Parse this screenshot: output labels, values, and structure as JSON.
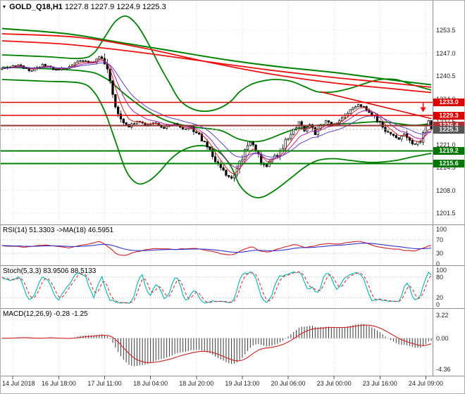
{
  "header": {
    "symbol": "GOLD_Q18,H1",
    "ohlc": "1227.8 1227.9 1224.9 1225.3",
    "dropdown_icon": "▾"
  },
  "panels": {
    "rsi": {
      "label": "RSI(14) 51.3303 ->MA(18) 46.5951"
    },
    "stoch": {
      "label": "Stoch(5,3,3) 83.9506 88.5133"
    },
    "macd": {
      "label": "MACD(12,26,9) -0.28 -1.25"
    }
  },
  "colors": {
    "grid": "#d9d9d9",
    "bull": "#ffffff",
    "bear": "#000000",
    "candle_outline": "#000000",
    "ma_red": "#ee1111",
    "band_green": "#008000",
    "level_red": "#dd0000",
    "level_maroon": "#993333",
    "level_green": "#008000",
    "bid_line": "#aaaaaa",
    "rsi_main": "#cc2222",
    "rsi_ma": "#3333cc",
    "stoch_main": "#00b3b3",
    "stoch_signal": "#cc2222",
    "macd_hist": "#3a3a3a",
    "macd_signal": "#cc2222",
    "separator": "#8f8f8f",
    "axis_text": "#222222"
  },
  "chart_data": {
    "type": "candlestick",
    "title": "GOLD_Q18,H1",
    "symbol": "GOLD_Q18",
    "timeframe": "H1",
    "ohlc_current": {
      "open": 1227.8,
      "high": 1227.9,
      "low": 1224.9,
      "close": 1225.3
    },
    "time_axis": {
      "labels": [
        {
          "label": "14 Jul 2018",
          "bar": 4
        },
        {
          "label": "16 Jul 18:00",
          "bar": 21
        },
        {
          "label": "17 Jul 11:00",
          "bar": 38
        },
        {
          "label": "18 Jul 04:00",
          "bar": 55
        },
        {
          "label": "18 Jul 20:00",
          "bar": 72
        },
        {
          "label": "19 Jul 13:00",
          "bar": 89
        },
        {
          "label": "20 Jul 06:00",
          "bar": 106
        },
        {
          "label": "23 Jul 00:00",
          "bar": 123
        },
        {
          "label": "23 Jul 16:00",
          "bar": 140
        },
        {
          "label": "24 Jul 09:00",
          "bar": 157
        }
      ]
    },
    "main": {
      "bars": 160,
      "y_range": [
        1198.3,
        1261.9
      ],
      "y_ticks": [
        {
          "label": "1253.5",
          "value": 1253.5
        },
        {
          "label": "1247.0",
          "value": 1247.0
        },
        {
          "label": "1240.5",
          "value": 1240.5
        },
        {
          "label": "1234.0",
          "value": 1234.0
        },
        {
          "label": "1227.5",
          "value": 1227.5
        },
        {
          "label": "1221.0",
          "value": 1221.0
        },
        {
          "label": "1214.5",
          "value": 1214.5
        },
        {
          "label": "1208.0",
          "value": 1208.0
        },
        {
          "label": "1201.5",
          "value": 1201.5
        }
      ],
      "price_anchors": [
        [
          0,
          1242.5
        ],
        [
          6,
          1243.5
        ],
        [
          11,
          1242.0
        ],
        [
          15,
          1243.8
        ],
        [
          20,
          1242.2
        ],
        [
          25,
          1243.0
        ],
        [
          29,
          1244.8
        ],
        [
          33,
          1244.2
        ],
        [
          36,
          1246.0
        ],
        [
          38,
          1244.8
        ],
        [
          40,
          1239.5
        ],
        [
          42,
          1231.5
        ],
        [
          44,
          1227.5
        ],
        [
          47,
          1225.8
        ],
        [
          50,
          1227.8
        ],
        [
          53,
          1226.2
        ],
        [
          56,
          1227.3
        ],
        [
          60,
          1225.8
        ],
        [
          64,
          1226.8
        ],
        [
          67,
          1225.3
        ],
        [
          70,
          1226.2
        ],
        [
          74,
          1222.5
        ],
        [
          77,
          1219.3
        ],
        [
          80,
          1215.5
        ],
        [
          83,
          1212.5
        ],
        [
          85,
          1211.8
        ],
        [
          87,
          1214.0
        ],
        [
          89,
          1217.5
        ],
        [
          92,
          1221.5
        ],
        [
          94,
          1219.0
        ],
        [
          96,
          1216.0
        ],
        [
          98,
          1214.8
        ],
        [
          100,
          1216.5
        ],
        [
          103,
          1219.0
        ],
        [
          105,
          1222.0
        ],
        [
          108,
          1225.5
        ],
        [
          110,
          1227.3
        ],
        [
          112,
          1224.8
        ],
        [
          114,
          1226.5
        ],
        [
          116,
          1224.0
        ],
        [
          118,
          1226.0
        ],
        [
          120,
          1227.8
        ],
        [
          122,
          1226.5
        ],
        [
          125,
          1228.0
        ],
        [
          127,
          1229.5
        ],
        [
          129,
          1231.0
        ],
        [
          132,
          1232.3
        ],
        [
          135,
          1231.0
        ],
        [
          138,
          1229.0
        ],
        [
          140,
          1227.0
        ],
        [
          142,
          1225.0
        ],
        [
          144,
          1223.8
        ],
        [
          147,
          1222.5
        ],
        [
          149,
          1224.0
        ],
        [
          151,
          1222.0
        ],
        [
          153,
          1220.8
        ],
        [
          155,
          1222.5
        ],
        [
          157,
          1226.2
        ],
        [
          159,
          1225.3
        ]
      ],
      "ema_periods": [
        5,
        10,
        20
      ],
      "ema_colors": [
        "#d02020",
        "#a020a0",
        "#6040c0"
      ],
      "overlays": [
        {
          "name": "weekly-band-upper",
          "color": "#008000",
          "width": 2,
          "over": false,
          "points": [
            [
              0,
              1254.0
            ],
            [
              24,
              1252.5
            ],
            [
              44,
              1250.0
            ],
            [
              64,
              1247.5
            ],
            [
              84,
              1245.0
            ],
            [
              104,
              1243.0
            ],
            [
              123,
              1241.5
            ],
            [
              143,
              1239.5
            ],
            [
              159,
              1238.0
            ]
          ]
        },
        {
          "name": "bollinger-upper",
          "color": "#008000",
          "width": 1.8,
          "over": false,
          "points": [
            [
              0,
              1246.5
            ],
            [
              16,
              1246.0
            ],
            [
              29,
              1245.5
            ],
            [
              34,
              1247.0
            ],
            [
              38,
              1251.5
            ],
            [
              42,
              1256.0
            ],
            [
              46,
              1257.5
            ],
            [
              50,
              1255.0
            ],
            [
              54,
              1250.0
            ],
            [
              58,
              1244.0
            ],
            [
              62,
              1238.5
            ],
            [
              66,
              1233.5
            ],
            [
              71,
              1231.0
            ],
            [
              76,
              1230.5
            ],
            [
              81,
              1231.5
            ],
            [
              85,
              1233.5
            ],
            [
              88,
              1236.0
            ],
            [
              92,
              1238.0
            ],
            [
              96,
              1239.0
            ],
            [
              101,
              1239.5
            ],
            [
              107,
              1239.0
            ],
            [
              112,
              1237.5
            ],
            [
              117,
              1236.0
            ],
            [
              123,
              1236.0
            ],
            [
              129,
              1237.0
            ],
            [
              135,
              1238.5
            ],
            [
              140,
              1239.5
            ],
            [
              146,
              1239.5
            ],
            [
              152,
              1238.0
            ],
            [
              159,
              1236.5
            ]
          ]
        },
        {
          "name": "bollinger-middle",
          "color": "#008000",
          "width": 1.8,
          "over": false,
          "points": [
            [
              0,
              1243.0
            ],
            [
              29,
              1242.0
            ],
            [
              38,
              1240.0
            ],
            [
              46,
              1235.0
            ],
            [
              54,
              1230.5
            ],
            [
              62,
              1227.5
            ],
            [
              71,
              1226.0
            ],
            [
              81,
              1225.0
            ],
            [
              88,
              1222.5
            ],
            [
              96,
              1222.0
            ],
            [
              107,
              1225.0
            ],
            [
              117,
              1226.5
            ],
            [
              129,
              1227.0
            ],
            [
              140,
              1227.5
            ],
            [
              152,
              1226.5
            ],
            [
              159,
              1227.0
            ]
          ]
        },
        {
          "name": "bollinger-lower",
          "color": "#008000",
          "width": 1.8,
          "over": false,
          "points": [
            [
              0,
              1239.5
            ],
            [
              16,
              1239.0
            ],
            [
              29,
              1238.5
            ],
            [
              34,
              1236.0
            ],
            [
              38,
              1230.5
            ],
            [
              42,
              1222.0
            ],
            [
              46,
              1213.5
            ],
            [
              50,
              1210.0
            ],
            [
              54,
              1210.5
            ],
            [
              58,
              1213.0
            ],
            [
              62,
              1216.5
            ],
            [
              66,
              1219.0
            ],
            [
              71,
              1220.5
            ],
            [
              76,
              1220.5
            ],
            [
              81,
              1218.5
            ],
            [
              85,
              1214.5
            ],
            [
              88,
              1209.5
            ],
            [
              92,
              1206.5
            ],
            [
              96,
              1206.0
            ],
            [
              101,
              1208.0
            ],
            [
              107,
              1211.5
            ],
            [
              112,
              1214.5
            ],
            [
              117,
              1216.5
            ],
            [
              123,
              1217.0
            ],
            [
              129,
              1216.5
            ],
            [
              135,
              1216.0
            ],
            [
              140,
              1216.0
            ],
            [
              146,
              1216.5
            ],
            [
              152,
              1217.5
            ],
            [
              159,
              1218.5
            ]
          ]
        },
        {
          "name": "ma-red-slow",
          "color": "#ee1111",
          "width": 1.8,
          "over": false,
          "points": [
            [
              0,
              1250.5
            ],
            [
              24,
              1249.5
            ],
            [
              48,
              1247.5
            ],
            [
              72,
              1245.0
            ],
            [
              96,
              1242.5
            ],
            [
              120,
              1240.3
            ],
            [
              140,
              1238.8
            ],
            [
              159,
              1237.3
            ]
          ]
        },
        {
          "name": "ma-red-fast",
          "color": "#ee1111",
          "width": 1.8,
          "over": false,
          "points": [
            [
              0,
              1252.5
            ],
            [
              28,
              1251.5
            ],
            [
              52,
              1248.5
            ],
            [
              76,
              1244.5
            ],
            [
              100,
              1241.0
            ],
            [
              123,
              1238.5
            ],
            [
              143,
              1237.0
            ],
            [
              159,
              1235.8
            ]
          ]
        },
        {
          "name": "descending-trendline",
          "color": "#dd0000",
          "width": 1.6,
          "over": true,
          "points": [
            [
              118,
              1236.0
            ],
            [
              159,
              1228.4
            ]
          ]
        }
      ],
      "levels": [
        {
          "price": 1233.0,
          "color": "#dd0000",
          "width": 1.4
        },
        {
          "price": 1229.3,
          "color": "#dd0000",
          "width": 1.4
        },
        {
          "price": 1226.4,
          "color": "#993333",
          "width": 2
        },
        {
          "price": 1219.2,
          "color": "#008000",
          "width": 2
        },
        {
          "price": 1215.6,
          "color": "#008000",
          "width": 2
        }
      ],
      "badges": [
        {
          "label": "1233.0",
          "value": 1233.0,
          "bg": "#dd0000"
        },
        {
          "label": "1229.3",
          "value": 1229.3,
          "bg": "#dd0000"
        },
        {
          "label": "1226.4",
          "value": 1226.4,
          "bg": "#b03030"
        },
        {
          "label": "1225.3",
          "value": 1225.3,
          "bg": "#555555"
        },
        {
          "label": "1219.2",
          "value": 1219.2,
          "bg": "#007700"
        },
        {
          "label": "1215.6",
          "value": 1215.6,
          "bg": "#007700"
        }
      ],
      "bid": 1225.3,
      "marker": {
        "bar": 156,
        "price": 1230.6,
        "color": "#ee1111",
        "shape": "arrow-down"
      }
    },
    "rsi": {
      "name": "RSI",
      "period": 14,
      "value": 51.3303,
      "ma_period": 18,
      "ma_value": 46.5951,
      "levels": [
        70,
        30
      ],
      "y_ticks": [
        {
          "label": "100",
          "value": 100
        },
        {
          "label": "70",
          "value": 70
        },
        {
          "label": "30",
          "value": 30
        },
        {
          "label": "0",
          "value": 0
        }
      ],
      "anchors": [
        [
          0,
          52
        ],
        [
          8,
          48
        ],
        [
          16,
          55
        ],
        [
          24,
          46
        ],
        [
          32,
          58
        ],
        [
          36,
          66
        ],
        [
          39,
          50
        ],
        [
          42,
          28
        ],
        [
          45,
          24
        ],
        [
          50,
          36
        ],
        [
          56,
          44
        ],
        [
          64,
          42
        ],
        [
          71,
          45
        ],
        [
          76,
          38
        ],
        [
          81,
          28
        ],
        [
          85,
          25
        ],
        [
          88,
          38
        ],
        [
          92,
          50
        ],
        [
          95,
          38
        ],
        [
          98,
          32
        ],
        [
          102,
          44
        ],
        [
          108,
          56
        ],
        [
          112,
          48
        ],
        [
          116,
          54
        ],
        [
          120,
          58
        ],
        [
          124,
          57
        ],
        [
          128,
          63
        ],
        [
          132,
          66
        ],
        [
          136,
          56
        ],
        [
          140,
          48
        ],
        [
          144,
          43
        ],
        [
          148,
          40
        ],
        [
          152,
          36
        ],
        [
          156,
          46
        ],
        [
          158,
          55
        ],
        [
          159,
          51.3
        ]
      ]
    },
    "stoch": {
      "name": "Stochastic",
      "params": [
        5,
        3,
        3
      ],
      "value": 83.9506,
      "signal": 88.5133,
      "levels": [
        80,
        20
      ],
      "y_ticks": [
        {
          "label": "100",
          "value": 100
        },
        {
          "label": "80",
          "value": 80
        },
        {
          "label": "20",
          "value": 20
        },
        {
          "label": "0",
          "value": 0
        }
      ]
    },
    "macd": {
      "name": "MACD",
      "params": [
        12,
        26,
        9
      ],
      "value": -0.28,
      "signal": -1.25,
      "levels": [
        0
      ],
      "y_ticks": [
        {
          "label": "3.22",
          "value": 3.22
        },
        {
          "label": "0.00",
          "value": 0
        },
        {
          "label": "-4.36",
          "value": -4.36
        }
      ]
    }
  }
}
